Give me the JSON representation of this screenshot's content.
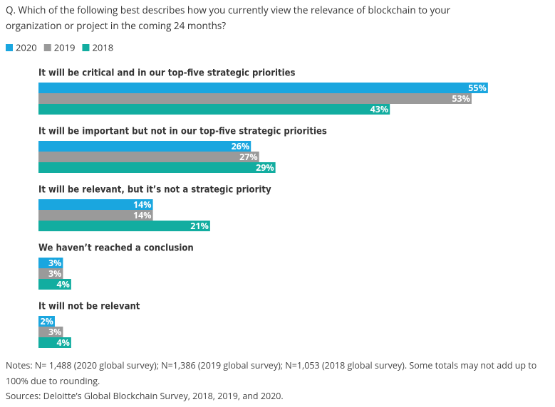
{
  "chart_data": {
    "type": "bar",
    "title": "Q. Which of the following best describes how you currently view the relevance of blockchain to your organization or project in the coming 24 months?",
    "categories": [
      "It will be critical and in our top-five strategic priorities",
      "It will be important but not in our top-five strategic priorities",
      "It will be relevant, but it’s not a strategic priority",
      "We haven’t reached a conclusion",
      "It will not be relevant"
    ],
    "series": [
      {
        "name": "2020",
        "color": "#1aa6df",
        "values": [
          55,
          26,
          14,
          3,
          2
        ],
        "value_labels": [
          "55%",
          "26%",
          "14%",
          "3%",
          "2%"
        ]
      },
      {
        "name": "2019",
        "color": "#9a9a9a",
        "values": [
          53,
          27,
          14,
          3,
          3
        ],
        "value_labels": [
          "53%",
          "27%",
          "14%",
          "3%",
          "3%"
        ]
      },
      {
        "name": "2018",
        "color": "#12ada0",
        "values": [
          43,
          29,
          21,
          4,
          4
        ],
        "value_labels": [
          "43%",
          "29%",
          "21%",
          "4%",
          "4%"
        ]
      }
    ],
    "notes": "Notes: N= 1,488 (2020 global survey); N=1,386 (2019 global survey); N=1,053 (2018 global survey). Some totals may not add up to 100% due to rounding.",
    "sources": "Sources: Deloitte’s Global Blockchain Survey, 2018, 2019, and 2020."
  }
}
